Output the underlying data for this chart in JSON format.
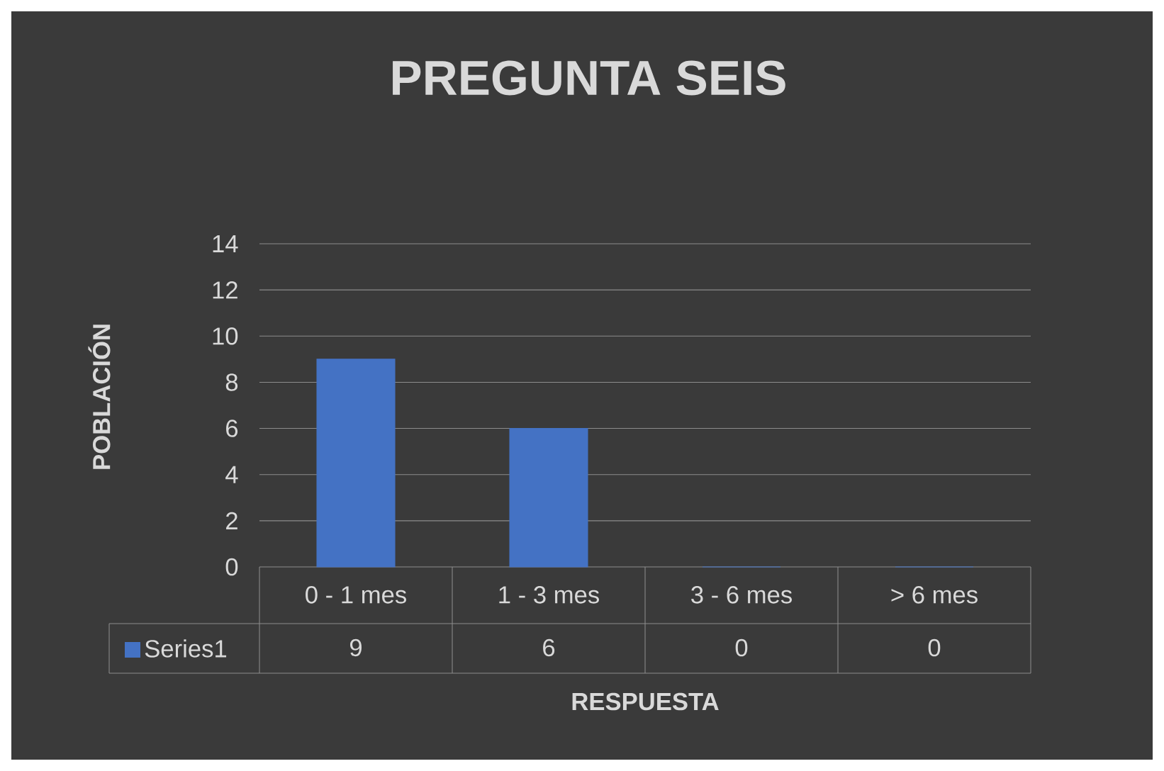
{
  "chart_data": {
    "type": "bar",
    "title": "PREGUNTA SEIS",
    "xlabel": "RESPUESTA",
    "ylabel": "POBLACIÓN",
    "categories": [
      "0 - 1 mes",
      "1 - 3 mes",
      "3 - 6 mes",
      "> 6 mes"
    ],
    "series": [
      {
        "name": "Series1",
        "color": "#4472c4",
        "values": [
          9,
          6,
          0,
          0
        ]
      }
    ],
    "ylim": [
      0,
      14
    ],
    "yticks": [
      0,
      2,
      4,
      6,
      8,
      10,
      12,
      14
    ],
    "grid": "y",
    "data_labels": true
  }
}
